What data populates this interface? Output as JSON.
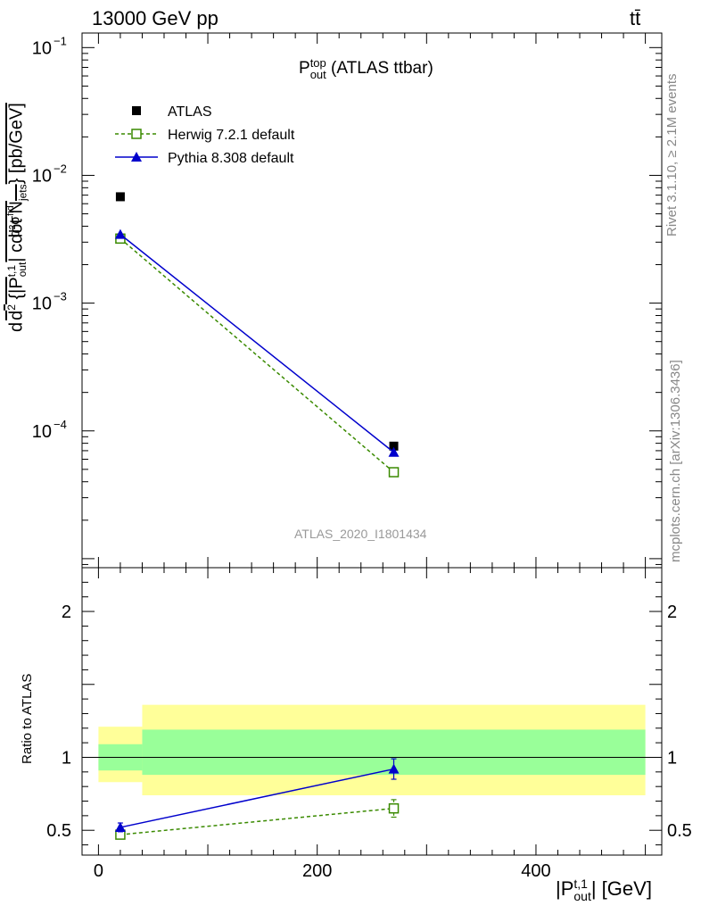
{
  "header": {
    "energy_label": "13000 GeV pp",
    "process_label": "tt̄"
  },
  "side_text": {
    "rivet": "Rivet 3.1.10, ≥ 2.1M events",
    "mcplots": "mcplots.cern.ch [arXiv:1306.3436]"
  },
  "watermark": "ATLAS_2020_I1801434",
  "chart_data": [
    {
      "type": "scatter",
      "title": "P_out^top (ATLAS ttbar)",
      "title_main": "P",
      "title_sup": "top",
      "title_sub": "out",
      "title_rest": " (ATLAS ttbar)",
      "ylabel": "d d²σ^fid / d²{|P_out^t,1| cdot N_jets} [pb/GeV]",
      "ylabel_parts": {
        "d_top": "d",
        "sigma": "d²σ",
        "sigma_sup": "fid",
        "den_a": "d",
        "den_b": "2",
        "den_c": " {|P",
        "den_sub": "out",
        "den_sup": "t,1",
        "den_d": "| cdot N",
        "den_sub2": "jets",
        "den_e": "} [pb/GeV]"
      },
      "yscale": "log",
      "ylim": [
        8.5e-06,
        0.13
      ],
      "xlim": [
        -15,
        515
      ],
      "yticks": [
        {
          "value": 0.1,
          "base": "10",
          "exp": "−1"
        },
        {
          "value": 0.01,
          "base": "10",
          "exp": "−2"
        },
        {
          "value": 0.001,
          "base": "10",
          "exp": "−3"
        },
        {
          "value": 0.0001,
          "base": "10",
          "exp": "−4"
        }
      ],
      "legend_position": "top-left",
      "series": [
        {
          "name": "ATLAS",
          "marker": "filled-square",
          "color": "#000000",
          "line": "none",
          "x": [
            20,
            270
          ],
          "y": [
            0.0068,
            7.6e-05
          ]
        },
        {
          "name": "Herwig 7.2.1 default",
          "marker": "open-square",
          "color": "#3a8a00",
          "line": "dashed",
          "x": [
            20,
            270
          ],
          "y": [
            0.0032,
            4.75e-05
          ]
        },
        {
          "name": "Pythia 8.308 default",
          "marker": "filled-triangle",
          "color": "#0000cc",
          "line": "solid",
          "x": [
            20,
            270
          ],
          "y": [
            0.00345,
            6.8e-05
          ]
        }
      ]
    },
    {
      "type": "line",
      "ylabel": "Ratio to ATLAS",
      "xlabel": "|P_out^t,1| [GeV]",
      "xlabel_parts": {
        "main": "|P",
        "sup": "t,1",
        "sub": "out",
        "rest": "| [GeV]"
      },
      "ylim": [
        0.33,
        2.3
      ],
      "xlim": [
        -15,
        515
      ],
      "xticks": [
        0,
        200,
        400
      ],
      "yticks": [
        0.5,
        1,
        2
      ],
      "reference_line": 1,
      "bands": [
        {
          "x0": 0,
          "x1": 40,
          "stat_syst_low": 0.83,
          "stat_syst_high": 1.21,
          "stat_low": 0.91,
          "stat_high": 1.09
        },
        {
          "x0": 40,
          "x1": 500,
          "stat_syst_low": 0.74,
          "stat_syst_high": 1.36,
          "stat_low": 0.88,
          "stat_high": 1.19
        }
      ],
      "band_colors": {
        "outer": "#ffff99",
        "inner": "#99ff99"
      },
      "series": [
        {
          "name": "Herwig 7.2.1 default",
          "color": "#3a8a00",
          "line": "dashed",
          "x": [
            20,
            270
          ],
          "y": [
            0.47,
            0.65
          ],
          "err": [
            0.02,
            0.06
          ]
        },
        {
          "name": "Pythia 8.308 default",
          "color": "#0000cc",
          "line": "solid",
          "x": [
            20,
            270
          ],
          "y": [
            0.52,
            0.92
          ],
          "err": [
            0.03,
            0.07
          ]
        }
      ]
    }
  ]
}
